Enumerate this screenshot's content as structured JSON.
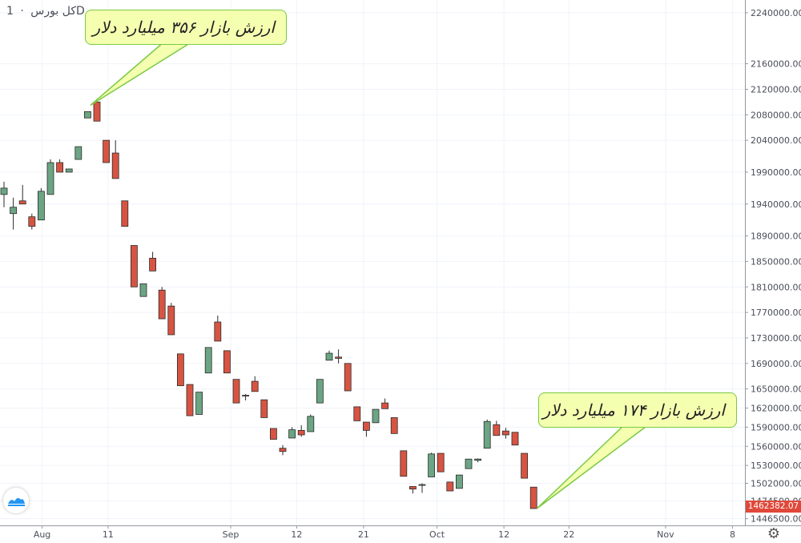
{
  "legend": {
    "symbol": "کل بورس",
    "separator": "·",
    "interval": "1D"
  },
  "callouts": {
    "top": "ارزش بازار ۳۵۶ میلیارد دلار",
    "bottom": "ارزش بازار ۱۷۴ میلیارد دلار"
  },
  "last_price": "1462382.07",
  "colors": {
    "up": "#6ba583",
    "down": "#d75442",
    "callout_bg": "#f4ffb0",
    "callout_border": "#7ac943",
    "price_tag": "#e0483a"
  },
  "chart_data": {
    "type": "candlestick",
    "y_tick_labels": [
      "2240000.00",
      "2160000.00",
      "2120000.00",
      "2080000.00",
      "2040000.00",
      "1990000.00",
      "1940000.00",
      "1890000.00",
      "1850000.00",
      "1810000.00",
      "1770000.00",
      "1730000.00",
      "1690000.00",
      "1650000.00",
      "1620000.00",
      "1590000.00",
      "1560000.00",
      "1530000.00",
      "1502000.00",
      "1474500.00",
      "1446500.00"
    ],
    "x_tick_labels": [
      "Aug",
      "11",
      "Sep",
      "12",
      "21",
      "Oct",
      "12",
      "22",
      "Nov",
      "8"
    ],
    "ylim": [
      1436000,
      2260000
    ],
    "grid": true,
    "candles": [
      {
        "o": 1955000,
        "h": 1975000,
        "l": 1935000,
        "c": 1965000
      },
      {
        "o": 1925000,
        "h": 1950000,
        "l": 1900000,
        "c": 1935000
      },
      {
        "o": 1945000,
        "h": 1970000,
        "l": 1940000,
        "c": 1940000
      },
      {
        "o": 1920000,
        "h": 1925000,
        "l": 1900000,
        "c": 1905000
      },
      {
        "o": 1915000,
        "h": 1965000,
        "l": 1915000,
        "c": 1960000
      },
      {
        "o": 1955000,
        "h": 2010000,
        "l": 1955000,
        "c": 2005000
      },
      {
        "o": 2005000,
        "h": 2010000,
        "l": 1990000,
        "c": 1990000
      },
      {
        "o": 1990000,
        "h": 1995000,
        "l": 1990000,
        "c": 1995000
      },
      {
        "o": 2010000,
        "h": 2030000,
        "l": 2010000,
        "c": 2030000
      },
      {
        "o": 2075000,
        "h": 2085000,
        "l": 2075000,
        "c": 2085000
      },
      {
        "o": 2100000,
        "h": 2100000,
        "l": 2070000,
        "c": 2070000
      },
      {
        "o": 2040000,
        "h": 2040000,
        "l": 2005000,
        "c": 2005000
      },
      {
        "o": 2020000,
        "h": 2040000,
        "l": 1980000,
        "c": 1980000
      },
      {
        "o": 1945000,
        "h": 1945000,
        "l": 1905000,
        "c": 1905000
      },
      {
        "o": 1875000,
        "h": 1875000,
        "l": 1810000,
        "c": 1810000
      },
      {
        "o": 1795000,
        "h": 1815000,
        "l": 1795000,
        "c": 1815000
      },
      {
        "o": 1855000,
        "h": 1865000,
        "l": 1835000,
        "c": 1835000
      },
      {
        "o": 1805000,
        "h": 1810000,
        "l": 1760000,
        "c": 1760000
      },
      {
        "o": 1780000,
        "h": 1785000,
        "l": 1735000,
        "c": 1735000
      },
      {
        "o": 1705000,
        "h": 1705000,
        "l": 1655000,
        "c": 1655000
      },
      {
        "o": 1657000,
        "h": 1657000,
        "l": 1608000,
        "c": 1608000
      },
      {
        "o": 1610000,
        "h": 1645000,
        "l": 1610000,
        "c": 1645000
      },
      {
        "o": 1675000,
        "h": 1715000,
        "l": 1675000,
        "c": 1715000
      },
      {
        "o": 1755000,
        "h": 1765000,
        "l": 1725000,
        "c": 1725000
      },
      {
        "o": 1710000,
        "h": 1710000,
        "l": 1675000,
        "c": 1675000
      },
      {
        "o": 1665000,
        "h": 1665000,
        "l": 1628000,
        "c": 1628000
      },
      {
        "o": 1640000,
        "h": 1642000,
        "l": 1632000,
        "c": 1639000
      },
      {
        "o": 1662000,
        "h": 1670000,
        "l": 1646000,
        "c": 1646000
      },
      {
        "o": 1633000,
        "h": 1633000,
        "l": 1605000,
        "c": 1605000
      },
      {
        "o": 1588000,
        "h": 1588000,
        "l": 1571000,
        "c": 1571000
      },
      {
        "o": 1557000,
        "h": 1562000,
        "l": 1546000,
        "c": 1552000
      },
      {
        "o": 1573000,
        "h": 1590000,
        "l": 1573000,
        "c": 1586000
      },
      {
        "o": 1585000,
        "h": 1593000,
        "l": 1575000,
        "c": 1578000
      },
      {
        "o": 1583000,
        "h": 1610000,
        "l": 1583000,
        "c": 1607000
      },
      {
        "o": 1628000,
        "h": 1665000,
        "l": 1628000,
        "c": 1665000
      },
      {
        "o": 1695000,
        "h": 1710000,
        "l": 1695000,
        "c": 1706000
      },
      {
        "o": 1700000,
        "h": 1712000,
        "l": 1690000,
        "c": 1698000
      },
      {
        "o": 1690000,
        "h": 1690000,
        "l": 1647000,
        "c": 1647000
      },
      {
        "o": 1622000,
        "h": 1622000,
        "l": 1600000,
        "c": 1600000
      },
      {
        "o": 1598000,
        "h": 1598000,
        "l": 1575000,
        "c": 1585000
      },
      {
        "o": 1597000,
        "h": 1618000,
        "l": 1597000,
        "c": 1618000
      },
      {
        "o": 1628000,
        "h": 1635000,
        "l": 1619000,
        "c": 1619000
      },
      {
        "o": 1605000,
        "h": 1605000,
        "l": 1580000,
        "c": 1580000
      },
      {
        "o": 1553000,
        "h": 1553000,
        "l": 1513000,
        "c": 1513000
      },
      {
        "o": 1497000,
        "h": 1497000,
        "l": 1486000,
        "c": 1493000
      },
      {
        "o": 1499000,
        "h": 1502000,
        "l": 1487000,
        "c": 1500000
      },
      {
        "o": 1512000,
        "h": 1550000,
        "l": 1512000,
        "c": 1548000
      },
      {
        "o": 1549000,
        "h": 1549000,
        "l": 1520000,
        "c": 1520000
      },
      {
        "o": 1504000,
        "h": 1504000,
        "l": 1490000,
        "c": 1490000
      },
      {
        "o": 1494000,
        "h": 1515000,
        "l": 1494000,
        "c": 1515000
      },
      {
        "o": 1525000,
        "h": 1540000,
        "l": 1525000,
        "c": 1540000
      },
      {
        "o": 1538000,
        "h": 1541000,
        "l": 1535000,
        "c": 1540000
      },
      {
        "o": 1557000,
        "h": 1602000,
        "l": 1557000,
        "c": 1599000
      },
      {
        "o": 1594000,
        "h": 1600000,
        "l": 1577000,
        "c": 1577000
      },
      {
        "o": 1584000,
        "h": 1589000,
        "l": 1572000,
        "c": 1578000
      },
      {
        "o": 1582000,
        "h": 1582000,
        "l": 1562000,
        "c": 1562000
      },
      {
        "o": 1549000,
        "h": 1549000,
        "l": 1510000,
        "c": 1510000
      },
      {
        "o": 1496000,
        "h": 1496000,
        "l": 1462382,
        "c": 1462382
      }
    ]
  }
}
